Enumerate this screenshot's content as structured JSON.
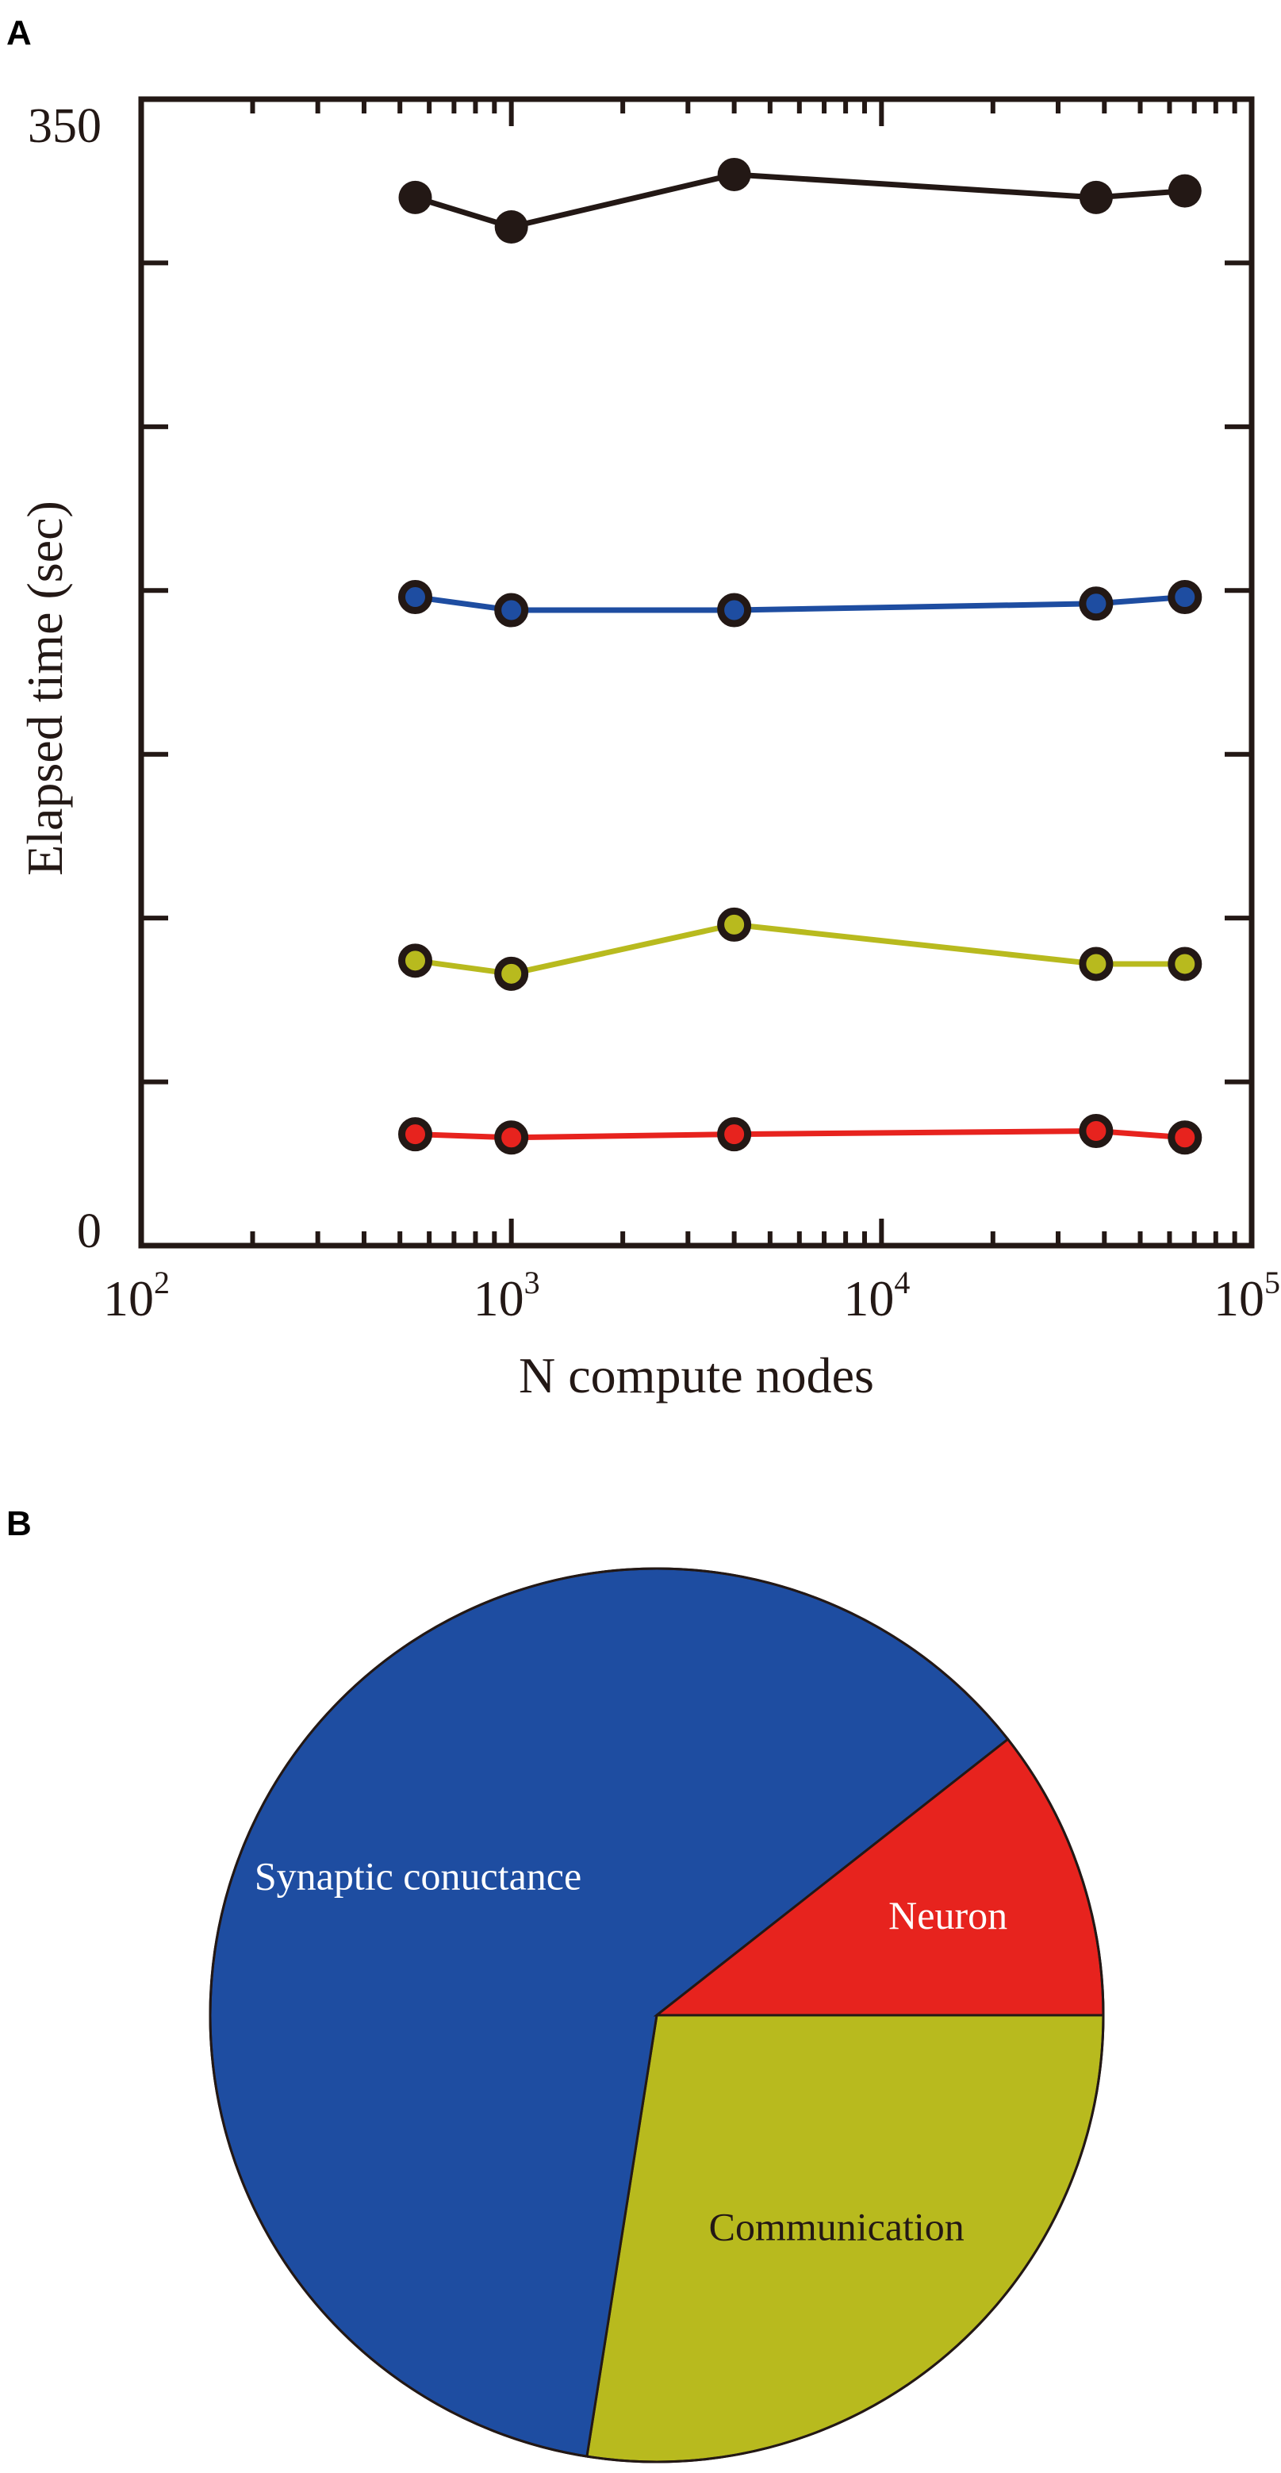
{
  "panels": {
    "a_label": "A",
    "b_label": "B"
  },
  "chart_data": [
    {
      "type": "line",
      "xscale": "log",
      "xlim": [
        100,
        100000
      ],
      "ylim": [
        0,
        350
      ],
      "xlabel": "N compute nodes",
      "ylabel": "Elapsed time (sec)",
      "x_ticks": [
        {
          "base": "10",
          "exp": "2",
          "value": 100
        },
        {
          "base": "10",
          "exp": "3",
          "value": 1000
        },
        {
          "base": "10",
          "exp": "4",
          "value": 10000
        },
        {
          "base": "10",
          "exp": "5",
          "value": 100000
        }
      ],
      "y_tick_labels": [
        {
          "label": "0",
          "value": 0
        },
        {
          "label": "350",
          "value": 350
        }
      ],
      "y_minor_ticks": [
        50,
        100,
        150,
        200,
        250,
        300
      ],
      "x": [
        550,
        1000,
        4000,
        38000,
        66000
      ],
      "series": [
        {
          "color": "#231815",
          "fill": "#231815",
          "marker": "large",
          "values": [
            320,
            311,
            327,
            320,
            322
          ]
        },
        {
          "color": "#1e4da1",
          "fill": "#1e4da1",
          "marker": "ringed",
          "values": [
            198,
            194,
            194,
            196,
            198
          ]
        },
        {
          "color": "#b8ba1e",
          "fill": "#b8ba1e",
          "marker": "ringed",
          "values": [
            87,
            83,
            98,
            86,
            86
          ]
        },
        {
          "color": "#e7231e",
          "fill": "#e7231e",
          "marker": "ringed",
          "values": [
            34,
            33,
            34,
            35,
            33
          ]
        }
      ],
      "grid": false,
      "legend": "none"
    },
    {
      "type": "pie",
      "start_angle_deg": 0,
      "direction": "clockwise",
      "slices": [
        {
          "label": "Communication",
          "value": 27.5,
          "color": "#b8ba1e",
          "text_color": "#231815"
        },
        {
          "label": "Synaptic conuctance",
          "value": 61.9,
          "color": "#1e4da1",
          "text_color": "#ffffff"
        },
        {
          "label": "Neuron",
          "value": 10.6,
          "color": "#e7231e",
          "text_color": "#ffffff"
        }
      ]
    }
  ]
}
